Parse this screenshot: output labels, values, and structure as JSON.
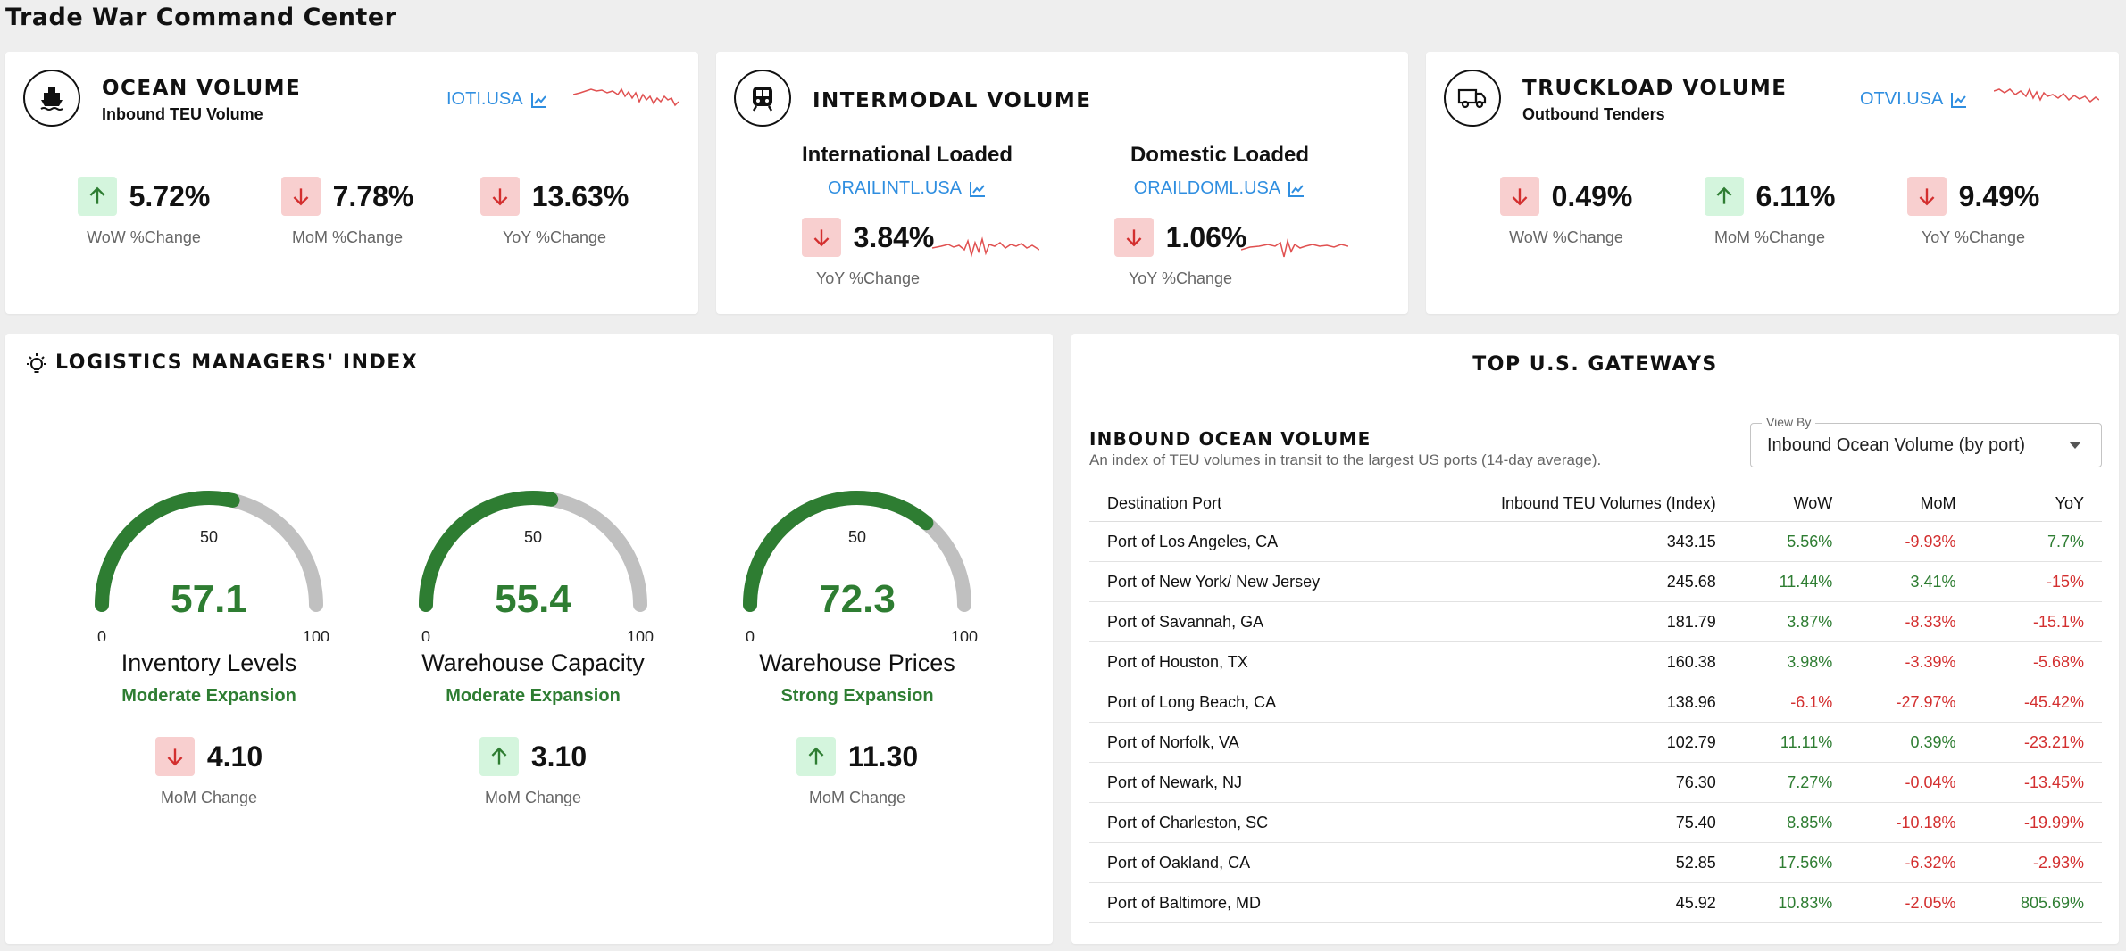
{
  "page_title": "Trade War Command Center",
  "ocean": {
    "title": "OCEAN VOLUME",
    "subtitle": "Inbound TEU Volume",
    "ticker": "IOTI.USA",
    "metrics": [
      {
        "value": "5.72%",
        "label": "WoW %Change",
        "direction": "up"
      },
      {
        "value": "7.78%",
        "label": "MoM %Change",
        "direction": "down"
      },
      {
        "value": "13.63%",
        "label": "YoY %Change",
        "direction": "down"
      }
    ]
  },
  "intermodal": {
    "title": "INTERMODAL VOLUME",
    "international": {
      "name": "International Loaded",
      "ticker": "ORAILINTL.USA",
      "value": "3.84%",
      "label": "YoY %Change",
      "direction": "down"
    },
    "domestic": {
      "name": "Domestic Loaded",
      "ticker": "ORAILDOML.USA",
      "value": "1.06%",
      "label": "YoY %Change",
      "direction": "down"
    }
  },
  "truckload": {
    "title": "TRUCKLOAD VOLUME",
    "subtitle": "Outbound Tenders",
    "ticker": "OTVI.USA",
    "metrics": [
      {
        "value": "0.49%",
        "label": "WoW %Change",
        "direction": "down"
      },
      {
        "value": "6.11%",
        "label": "MoM %Change",
        "direction": "up"
      },
      {
        "value": "9.49%",
        "label": "YoY %Change",
        "direction": "down"
      }
    ]
  },
  "lmi": {
    "title": "LOGISTICS MANAGERS' INDEX",
    "gauges": [
      {
        "name": "Inventory Levels",
        "value": "57.1",
        "status": "Moderate Expansion",
        "change": "4.10",
        "change_label": "MoM Change",
        "direction": "down",
        "min": "0",
        "mid": "50",
        "max": "100",
        "level": 57.1
      },
      {
        "name": "Warehouse Capacity",
        "value": "55.4",
        "status": "Moderate Expansion",
        "change": "3.10",
        "change_label": "MoM Change",
        "direction": "up",
        "min": "0",
        "mid": "50",
        "max": "100",
        "level": 55.4
      },
      {
        "name": "Warehouse Prices",
        "value": "72.3",
        "status": "Strong Expansion",
        "change": "11.30",
        "change_label": "MoM Change",
        "direction": "up",
        "min": "0",
        "mid": "50",
        "max": "100",
        "level": 72.3
      }
    ]
  },
  "gateways": {
    "title": "TOP U.S. GATEWAYS",
    "section_title": "INBOUND OCEAN VOLUME",
    "description": "An index of TEU volumes in transit to the largest US ports (14-day average).",
    "view_by_label": "View By",
    "view_by_value": "Inbound Ocean Volume (by port)",
    "columns": [
      "Destination Port",
      "Inbound TEU Volumes (Index)",
      "WoW",
      "MoM",
      "YoY"
    ],
    "rows": [
      [
        "Port of Los Angeles, CA",
        "343.15",
        "5.56%",
        "-9.93%",
        "7.7%"
      ],
      [
        "Port of New York/ New Jersey",
        "245.68",
        "11.44%",
        "3.41%",
        "-15%"
      ],
      [
        "Port of Savannah, GA",
        "181.79",
        "3.87%",
        "-8.33%",
        "-15.1%"
      ],
      [
        "Port of Houston, TX",
        "160.38",
        "3.98%",
        "-3.39%",
        "-5.68%"
      ],
      [
        "Port of Long Beach, CA",
        "138.96",
        "-6.1%",
        "-27.97%",
        "-45.42%"
      ],
      [
        "Port of Norfolk, VA",
        "102.79",
        "11.11%",
        "0.39%",
        "-23.21%"
      ],
      [
        "Port of Newark, NJ",
        "76.30",
        "7.27%",
        "-0.04%",
        "-13.45%"
      ],
      [
        "Port of Charleston, SC",
        "75.40",
        "8.85%",
        "-10.18%",
        "-19.99%"
      ],
      [
        "Port of Oakland, CA",
        "52.85",
        "17.56%",
        "-6.32%",
        "-2.93%"
      ],
      [
        "Port of Baltimore, MD",
        "45.92",
        "10.83%",
        "-2.05%",
        "805.69%"
      ]
    ]
  },
  "colors": {
    "accent_blue": "#2f8ee0",
    "positive": "#2e7d32",
    "negative": "#d32f2f",
    "gauge_fill": "#2e7d32",
    "gauge_track": "#c0c0c0"
  }
}
